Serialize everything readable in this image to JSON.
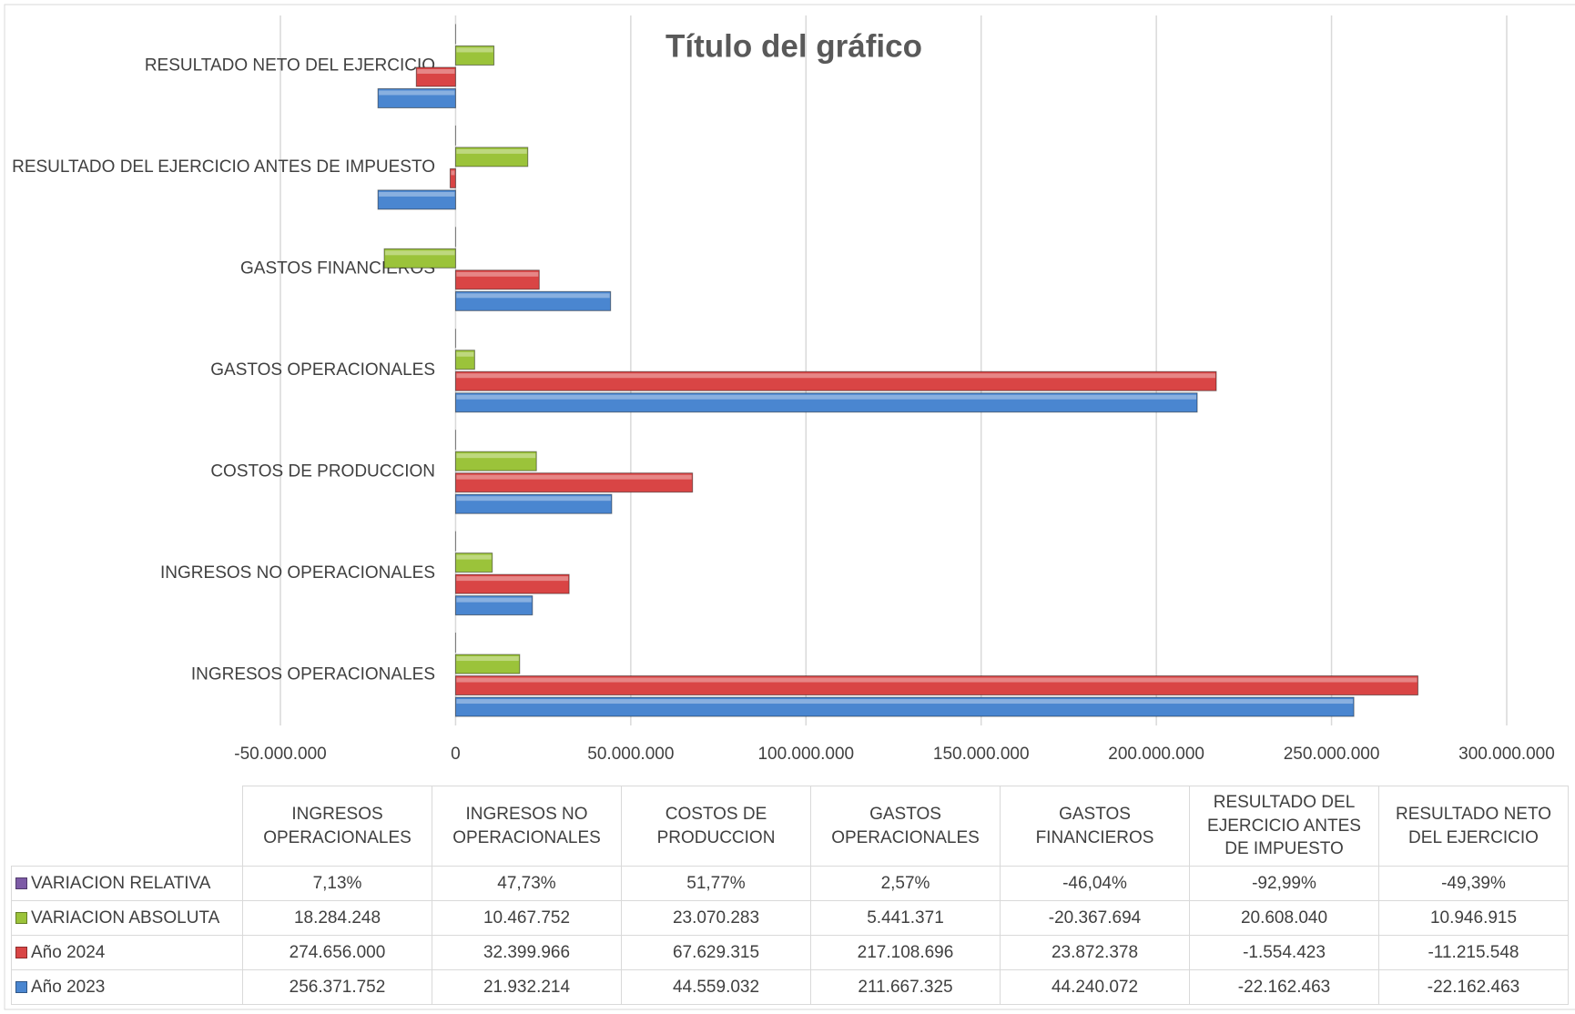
{
  "chart_data": {
    "type": "bar",
    "orientation": "horizontal",
    "title": "Título del gráfico",
    "categories": [
      "INGRESOS OPERACIONALES",
      "INGRESOS NO OPERACIONALES",
      "COSTOS DE PRODUCCION",
      "GASTOS OPERACIONALES",
      "GASTOS FINANCIEROS",
      "RESULTADO DEL EJERCICIO ANTES DE IMPUESTO",
      "RESULTADO NETO DEL EJERCICIO"
    ],
    "series": [
      {
        "name": "Año 2023",
        "color": "#4a86d0",
        "values": [
          256371752,
          21932214,
          44559032,
          211667325,
          44240072,
          -22162463,
          -22162463
        ],
        "value_labels": [
          "256.371.752",
          "21.932.214",
          "44.559.032",
          "211.667.325",
          "44.240.072",
          "-22.162.463",
          "-22.162.463"
        ]
      },
      {
        "name": "Año 2024",
        "color": "#d94545",
        "values": [
          274656000,
          32399966,
          67629315,
          217108696,
          23872378,
          -1554423,
          -11215548
        ],
        "value_labels": [
          "274.656.000",
          "32.399.966",
          "67.629.315",
          "217.108.696",
          "23.872.378",
          "-1.554.423",
          "-11.215.548"
        ]
      },
      {
        "name": "VARIACION ABSOLUTA",
        "color": "#9bc33a",
        "values": [
          18284248,
          10467752,
          23070283,
          5441371,
          -20367694,
          20608040,
          10946915
        ],
        "value_labels": [
          "18.284.248",
          "10.467.752",
          "23.070.283",
          "5.441.371",
          "-20.367.694",
          "20.608.040",
          "10.946.915"
        ]
      },
      {
        "name": "VARIACION RELATIVA",
        "color": "#7d5ba6",
        "values": [
          7.13,
          47.73,
          51.77,
          2.57,
          -46.04,
          -92.99,
          -49.39
        ],
        "value_labels": [
          "7,13%",
          "47,73%",
          "51,77%",
          "2,57%",
          "-46,04%",
          "-92,99%",
          "-49,39%"
        ]
      }
    ],
    "xlim": [
      -50000000,
      300000000
    ],
    "xticks": [
      {
        "value": -50000000,
        "label": "-50.000.000"
      },
      0,
      {
        "value": 50000000,
        "label": "50.000.000"
      },
      {
        "value": 100000000,
        "label": "100.000.000"
      },
      {
        "value": 150000000,
        "label": "150.000.000"
      },
      {
        "value": 200000000,
        "label": "200.000.000"
      },
      {
        "value": 250000000,
        "label": "250.000.000"
      },
      {
        "value": 300000000,
        "label": "300.000.000"
      }
    ],
    "grid": true,
    "data_table": true
  }
}
